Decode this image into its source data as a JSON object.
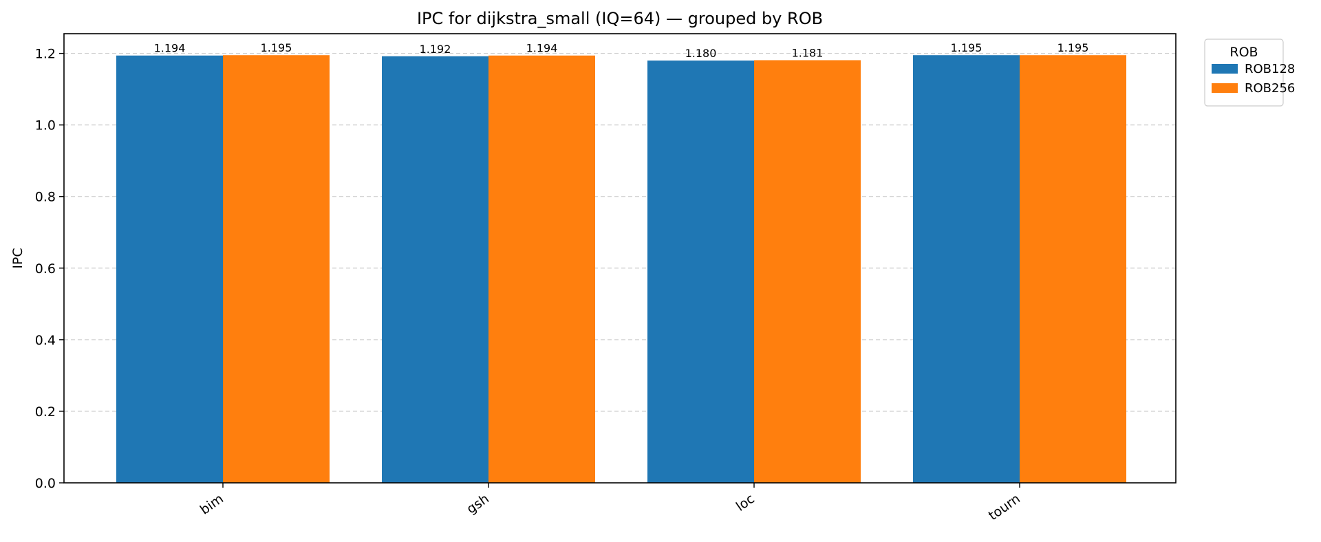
{
  "chart_data": {
    "type": "bar",
    "title": "IPC for dijkstra_small (IQ=64) — grouped by ROB",
    "xlabel": "",
    "ylabel": "IPC",
    "categories": [
      "bim",
      "gsh",
      "loc",
      "tourn"
    ],
    "series": [
      {
        "name": "ROB128",
        "color": "#1f77b4",
        "values": [
          1.194,
          1.192,
          1.18,
          1.195
        ],
        "labels": [
          "1.194",
          "1.192",
          "1.180",
          "1.195"
        ]
      },
      {
        "name": "ROB256",
        "color": "#ff7f0e",
        "values": [
          1.195,
          1.194,
          1.181,
          1.195
        ],
        "labels": [
          "1.195",
          "1.194",
          "1.181",
          "1.195"
        ]
      }
    ],
    "ylim": [
      0,
      1.255
    ],
    "yticks": [
      0.0,
      0.2,
      0.4,
      0.6,
      0.8,
      1.0,
      1.2
    ],
    "ytick_labels": [
      "0.0",
      "0.2",
      "0.4",
      "0.6",
      "0.8",
      "1.0",
      "1.2"
    ],
    "grid": {
      "axis": "y",
      "style": "dashed"
    },
    "legend": {
      "title": "ROB",
      "placement": "outside-top-right"
    }
  }
}
